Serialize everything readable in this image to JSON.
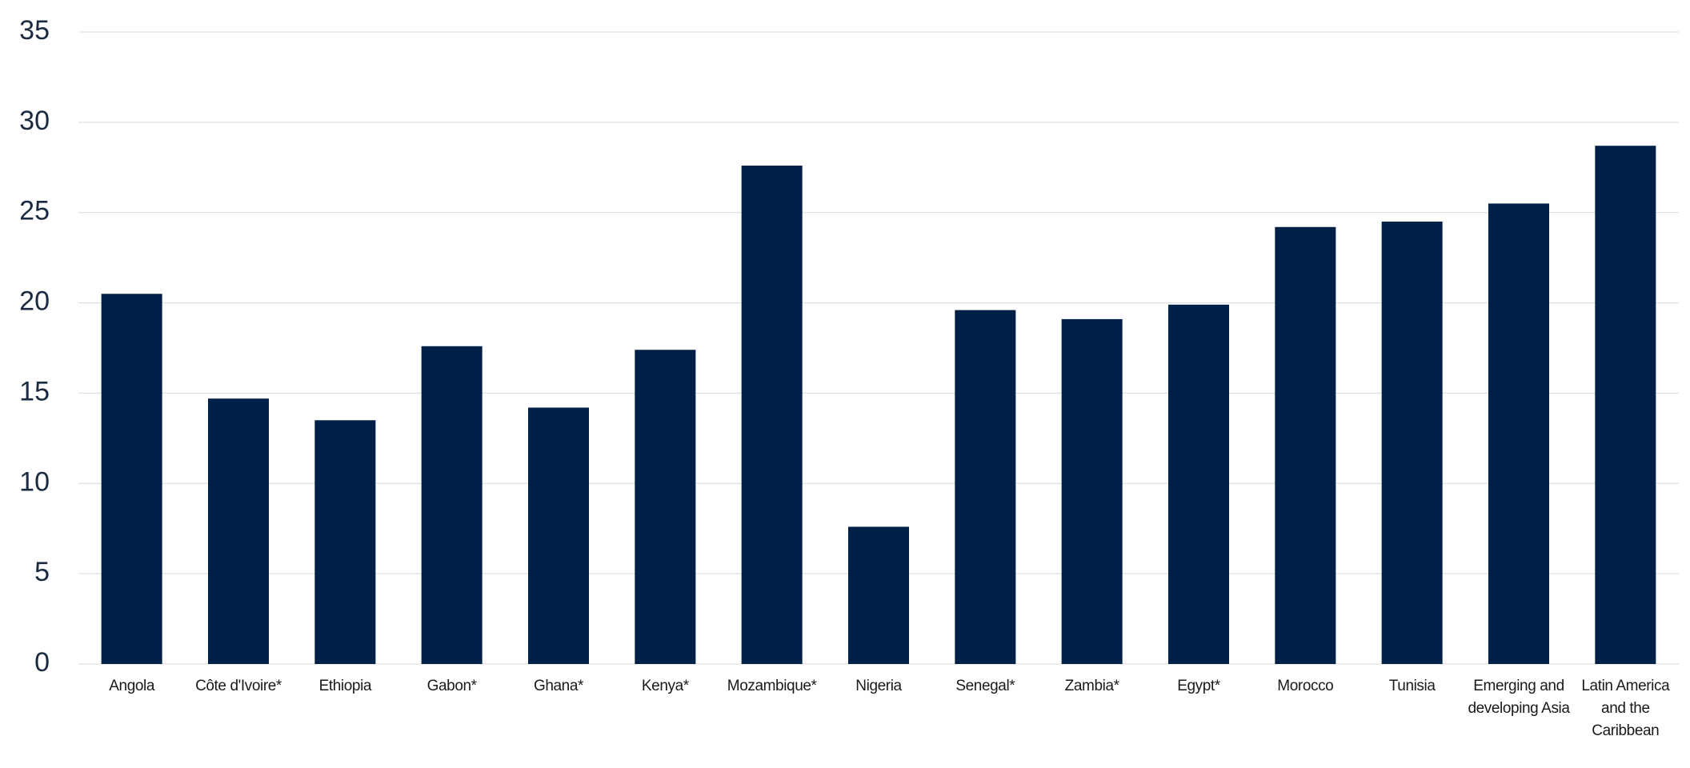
{
  "chart_data": {
    "type": "bar",
    "categories": [
      "Angola",
      "Côte d'Ivoire*",
      "Ethiopia",
      "Gabon*",
      "Ghana*",
      "Kenya*",
      "Mozambique*",
      "Nigeria",
      "Senegal*",
      "Zambia*",
      "Egypt*",
      "Morocco",
      "Tunisia",
      "Emerging and developing Asia",
      "Latin America and the Caribbean"
    ],
    "values": [
      20.5,
      14.7,
      13.5,
      17.6,
      14.2,
      17.4,
      27.6,
      7.6,
      19.6,
      19.1,
      19.9,
      24.2,
      24.5,
      25.5,
      28.7
    ],
    "color": "#002147",
    "ylim": [
      0,
      35
    ],
    "yticks": [
      0,
      5,
      10,
      15,
      20,
      25,
      30,
      35
    ],
    "grid": true
  }
}
